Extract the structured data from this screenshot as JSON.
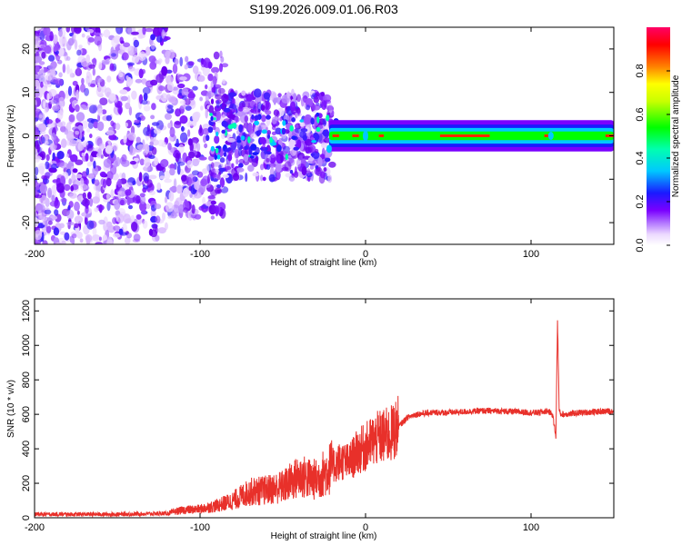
{
  "title": "S199.2026.009.01.06.R03",
  "chart_data": [
    {
      "type": "heatmap",
      "name": "spectrogram",
      "xlabel": "Height of straight line (km)",
      "ylabel": "Frequency (Hz)",
      "xlim": [
        -200,
        150
      ],
      "ylim": [
        -25,
        25
      ],
      "xticks": [
        -200,
        -100,
        0,
        100
      ],
      "yticks": [
        -20,
        -10,
        0,
        10,
        20
      ],
      "colorbar": {
        "label": "Normalized spectral amplitude",
        "range": [
          0,
          1
        ],
        "ticks": [
          0.0,
          0.2,
          0.4,
          0.6,
          0.8
        ]
      },
      "features": {
        "noise_region_km": [
          -200,
          -20
        ],
        "signal_band_hz": [
          -2,
          2
        ],
        "signal_peak_amplitude": 0.9
      }
    },
    {
      "type": "line",
      "name": "snr",
      "xlabel": "Height of straight line (km)",
      "ylabel": "SNR (10 * v/v)",
      "xlim": [
        -200,
        150
      ],
      "ylim": [
        0,
        1270
      ],
      "xticks": [
        -200,
        -100,
        0,
        100
      ],
      "yticks": [
        0,
        200,
        400,
        600,
        800,
        1000,
        1200
      ],
      "color": "#e8302a",
      "series": [
        {
          "name": "SNR",
          "x": [
            -200,
            -150,
            -120,
            -110,
            -100,
            -90,
            -80,
            -70,
            -60,
            -50,
            -40,
            -30,
            -20,
            -15,
            -10,
            -5,
            0,
            5,
            10,
            15,
            20,
            25,
            30,
            40,
            50,
            60,
            70,
            80,
            90,
            100,
            105,
            110,
            113,
            115,
            116,
            117,
            118,
            120,
            130,
            140,
            150
          ],
          "y": [
            20,
            20,
            25,
            45,
            50,
            70,
            100,
            150,
            160,
            180,
            240,
            220,
            300,
            330,
            320,
            380,
            410,
            450,
            470,
            480,
            530,
            580,
            600,
            610,
            610,
            615,
            620,
            620,
            615,
            610,
            610,
            620,
            600,
            470,
            1150,
            620,
            600,
            600,
            610,
            615,
            620
          ]
        }
      ]
    }
  ]
}
